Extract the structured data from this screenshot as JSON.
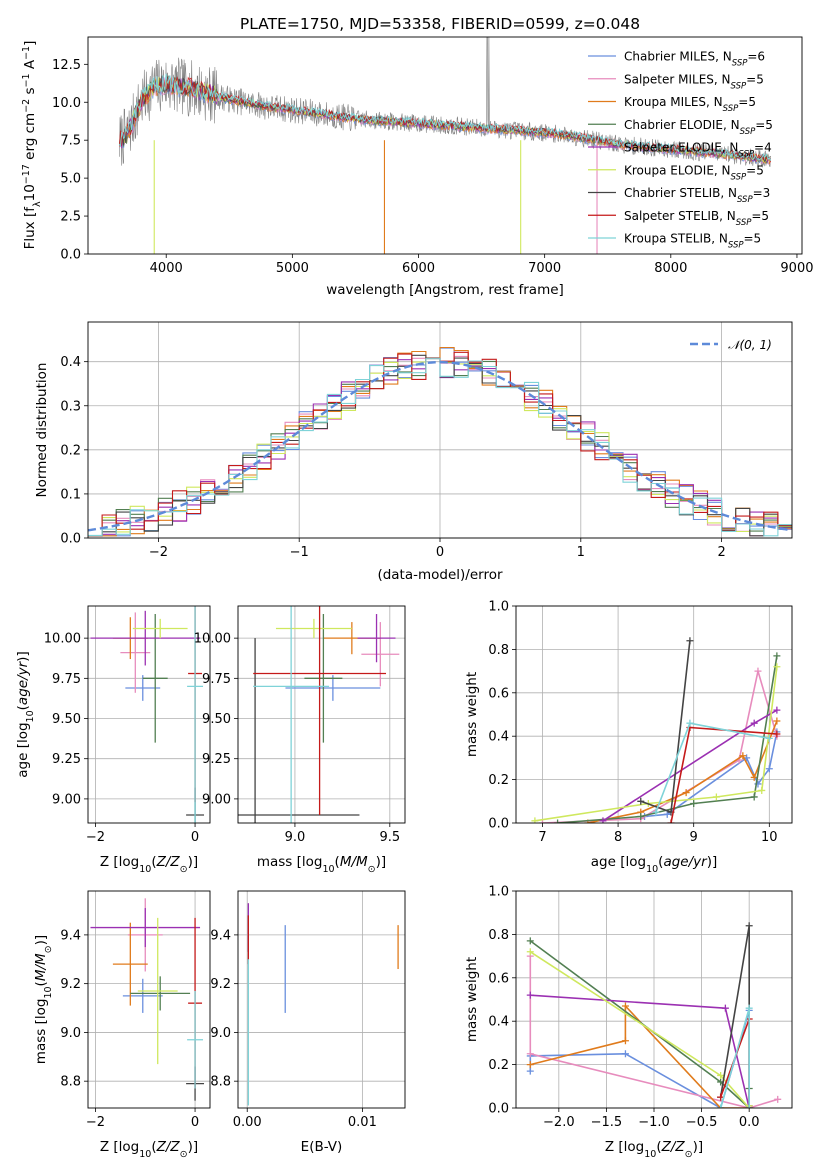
{
  "title": "PLATE=1750, MJD=53358, FIBERID=0599, z=0.048",
  "colors": {
    "Chabrier MILES": "#6a8fde",
    "Salpeter MILES": "#e78cbd",
    "Kroupa MILES": "#e07b1c",
    "Chabrier ELODIE": "#527f52",
    "Salpeter ELODIE": "#9b30b2",
    "Kroupa ELODIE": "#cfe85e",
    "Chabrier STELIB": "#444444",
    "Salpeter STELIB": "#c41a1a",
    "Kroupa STELIB": "#7fd3d8",
    "data": "#7f7f7f",
    "normal": "#5d8ad9"
  },
  "legend": [
    {
      "name": "Chabrier MILES",
      "n": "6"
    },
    {
      "name": "Salpeter MILES",
      "n": "5"
    },
    {
      "name": "Kroupa MILES",
      "n": "5"
    },
    {
      "name": "Chabrier ELODIE",
      "n": "5"
    },
    {
      "name": "Salpeter ELODIE",
      "n": "4"
    },
    {
      "name": "Kroupa ELODIE",
      "n": "5"
    },
    {
      "name": "Chabrier STELIB",
      "n": "3"
    },
    {
      "name": "Salpeter STELIB",
      "n": "5"
    },
    {
      "name": "Kroupa STELIB",
      "n": "5"
    }
  ],
  "legend_nssp_label": "N",
  "legend_nssp_sub": "SSP",
  "normal_legend": "𝒩(0, 1)",
  "chart_data": [
    {
      "id": "spectrum",
      "type": "line",
      "title": "PLATE=1750, MJD=53358, FIBERID=0599, z=0.048",
      "xlabel": "wavelength [Angstrom, rest frame]",
      "ylabel": "Flux [f_λ 10^-17 erg cm^-2 s^-1 A^-1]",
      "xlim": [
        3380,
        9040
      ],
      "ylim": [
        0,
        14.3
      ],
      "xticks": [
        4000,
        5000,
        6000,
        7000,
        8000,
        9000
      ],
      "yticks": [
        0.0,
        2.5,
        5.0,
        7.5,
        10.0,
        12.5
      ],
      "data_range": [
        3630,
        8790
      ],
      "continuum_x": [
        3630,
        3700,
        3800,
        3900,
        4000,
        4200,
        4500,
        4800,
        5000,
        5500,
        6000,
        6500,
        7000,
        7200,
        7400,
        7600,
        8000,
        8500,
        8790
      ],
      "continuum_y": [
        7.4,
        8.0,
        10.0,
        11.0,
        11.2,
        10.9,
        10.2,
        9.7,
        9.5,
        8.9,
        8.6,
        8.3,
        8.0,
        7.8,
        7.5,
        7.2,
        6.9,
        6.5,
        6.2
      ],
      "dropouts": [
        {
          "x": 3905,
          "color": "Kroupa ELODIE"
        },
        {
          "x": 5730,
          "color": "Kroupa MILES"
        },
        {
          "x": 6810,
          "color": "Kroupa ELODIE"
        },
        {
          "x": 7415,
          "color": "Salpeter MILES"
        }
      ]
    },
    {
      "id": "residual_histogram",
      "type": "histogram",
      "xlabel": "(data-model)/error",
      "ylabel": "Normed distribution",
      "xlim": [
        -2.5,
        2.5
      ],
      "ylim": [
        0,
        0.49
      ],
      "xticks": [
        -2,
        -1,
        0,
        1,
        2
      ],
      "yticks": [
        0.0,
        0.1,
        0.2,
        0.3,
        0.4
      ],
      "bin_width": 0.1,
      "reference": "N(0,1)"
    },
    {
      "id": "age_vs_Z",
      "type": "errorbar",
      "xlabel": "Z [log10(Z/Z⊙)]",
      "ylabel": "age  [log10(age/yr)]",
      "xlim": [
        -2.15,
        0.3
      ],
      "ylim": [
        8.85,
        10.2
      ],
      "xticks": [
        -2,
        0
      ],
      "yticks": [
        9.0,
        9.25,
        9.5,
        9.75,
        10.0
      ],
      "points": [
        {
          "s": "Chabrier MILES",
          "x": -1.05,
          "xe": 0.35,
          "y": 9.69,
          "ye": 0.08
        },
        {
          "s": "Salpeter MILES",
          "x": -1.2,
          "xe": 0.3,
          "y": 9.91,
          "ye": 0.25
        },
        {
          "s": "Kroupa MILES",
          "x": -1.3,
          "xe": 0.35,
          "y": 10.0,
          "ye": 0.13
        },
        {
          "s": "Chabrier ELODIE",
          "x": -0.8,
          "xe": 0.25,
          "y": 9.75,
          "ye": 0.4
        },
        {
          "s": "Salpeter ELODIE",
          "x": -1.0,
          "xe": 1.1,
          "y": 10.0,
          "ye": 0.17
        },
        {
          "s": "Kroupa ELODIE",
          "x": -0.7,
          "xe": 0.55,
          "y": 10.06,
          "ye": 0.06
        },
        {
          "s": "Chabrier STELIB",
          "x": 0.0,
          "xe": 0.18,
          "y": 8.9,
          "ye": 0.17
        },
        {
          "s": "Salpeter STELIB",
          "x": 0.0,
          "xe": 0.14,
          "y": 9.78,
          "ye": 0.8
        },
        {
          "s": "Kroupa STELIB",
          "x": 0.0,
          "xe": 0.16,
          "y": 9.7,
          "ye": 0.85
        }
      ]
    },
    {
      "id": "age_vs_mass",
      "type": "errorbar",
      "xlabel": "mass [log10(M/M⊙)]",
      "ylabel": "",
      "xlim": [
        8.7,
        9.58
      ],
      "ylim": [
        8.85,
        10.2
      ],
      "xticks": [
        9.0,
        9.5
      ],
      "yticks": [
        9.0,
        9.25,
        9.5,
        9.75,
        10.0
      ],
      "points": [
        {
          "s": "Chabrier MILES",
          "x": 9.2,
          "xe": 0.25,
          "y": 9.69,
          "ye": 0.08
        },
        {
          "s": "Salpeter MILES",
          "x": 9.45,
          "xe": 0.1,
          "y": 9.9,
          "ye": 0.2
        },
        {
          "s": "Kroupa MILES",
          "x": 9.3,
          "xe": 0.15,
          "y": 10.0,
          "ye": 0.1
        },
        {
          "s": "Chabrier ELODIE",
          "x": 9.15,
          "xe": 0.1,
          "y": 9.75,
          "ye": 0.4
        },
        {
          "s": "Salpeter ELODIE",
          "x": 9.43,
          "xe": 0.1,
          "y": 10.0,
          "ye": 0.15
        },
        {
          "s": "Kroupa ELODIE",
          "x": 9.1,
          "xe": 0.2,
          "y": 10.06,
          "ye": 0.06
        },
        {
          "s": "Chabrier STELIB",
          "x": 8.79,
          "xe": 0.55,
          "y": 8.9,
          "ye": 1.1
        },
        {
          "s": "Salpeter STELIB",
          "x": 9.13,
          "xe": 0.35,
          "y": 9.78,
          "ye": 0.88
        },
        {
          "s": "Kroupa STELIB",
          "x": 8.98,
          "xe": 0.2,
          "y": 9.7,
          "ye": 0.9
        }
      ]
    },
    {
      "id": "weight_vs_age",
      "type": "line",
      "xlabel": "age  [log10(age/yr)]",
      "ylabel": "mass weight",
      "xlim": [
        6.65,
        10.3
      ],
      "ylim": [
        0,
        1.0
      ],
      "xticks": [
        7,
        8,
        9,
        10
      ],
      "yticks": [
        0.0,
        0.2,
        0.4,
        0.6,
        0.8,
        1.0
      ],
      "series": [
        {
          "name": "Chabrier MILES",
          "x": [
            8.35,
            8.65,
            9.7,
            9.85,
            10.0,
            10.1
          ],
          "y": [
            0.03,
            0.04,
            0.3,
            0.18,
            0.25,
            0.42
          ]
        },
        {
          "name": "Salpeter MILES",
          "x": [
            7.0,
            8.3,
            9.6,
            9.85,
            10.1
          ],
          "y": [
            0.0,
            0.02,
            0.29,
            0.7,
            0.4
          ]
        },
        {
          "name": "Kroupa MILES",
          "x": [
            7.6,
            8.3,
            8.9,
            9.65,
            9.8,
            10.1
          ],
          "y": [
            0.0,
            0.05,
            0.14,
            0.31,
            0.21,
            0.47
          ]
        },
        {
          "name": "Chabrier ELODIE",
          "x": [
            7.2,
            8.3,
            9.0,
            9.8,
            10.1
          ],
          "y": [
            0.0,
            0.03,
            0.09,
            0.12,
            0.77
          ]
        },
        {
          "name": "Salpeter ELODIE",
          "x": [
            7.8,
            9.8,
            10.1
          ],
          "y": [
            0.01,
            0.46,
            0.52
          ]
        },
        {
          "name": "Kroupa ELODIE",
          "x": [
            6.9,
            8.4,
            9.3,
            9.9,
            10.1
          ],
          "y": [
            0.01,
            0.09,
            0.12,
            0.15,
            0.72
          ]
        },
        {
          "name": "Chabrier STELIB",
          "x": [
            8.3,
            8.7,
            8.95
          ],
          "y": [
            0.1,
            0.05,
            0.84
          ]
        },
        {
          "name": "Salpeter STELIB",
          "x": [
            8.7,
            8.95,
            10.1
          ],
          "y": [
            0.0,
            0.44,
            0.41
          ]
        },
        {
          "name": "Kroupa STELIB",
          "x": [
            8.5,
            8.95,
            10.0
          ],
          "y": [
            0.05,
            0.46,
            0.39
          ]
        }
      ]
    },
    {
      "id": "mass_vs_Z",
      "type": "errorbar",
      "xlabel": "Z [log10(Z/Z⊙)]",
      "ylabel": "mass [log10(M/M⊙)]",
      "xlim": [
        -2.15,
        0.3
      ],
      "ylim": [
        8.69,
        9.58
      ],
      "xticks": [
        -2,
        0
      ],
      "yticks": [
        8.8,
        9.0,
        9.2,
        9.4
      ],
      "points": [
        {
          "s": "Chabrier MILES",
          "x": -1.05,
          "xe": 0.4,
          "y": 9.15,
          "ye": 0.07
        },
        {
          "s": "Salpeter MILES",
          "x": -1.0,
          "xe": 0.35,
          "y": 9.4,
          "ye": 0.15
        },
        {
          "s": "Kroupa MILES",
          "x": -1.3,
          "xe": 0.35,
          "y": 9.28,
          "ye": 0.17
        },
        {
          "s": "Chabrier ELODIE",
          "x": -0.7,
          "xe": 0.6,
          "y": 9.16,
          "ye": 0.07
        },
        {
          "s": "Salpeter ELODIE",
          "x": -1.0,
          "xe": 1.1,
          "y": 9.43,
          "ye": 0.08
        },
        {
          "s": "Kroupa ELODIE",
          "x": -0.75,
          "xe": 0.4,
          "y": 9.17,
          "ye": 0.3
        },
        {
          "s": "Chabrier STELIB",
          "x": 0.0,
          "xe": 0.18,
          "y": 8.79,
          "ye": 0.07
        },
        {
          "s": "Salpeter STELIB",
          "x": 0.0,
          "xe": 0.14,
          "y": 9.12,
          "ye": 0.35
        },
        {
          "s": "Kroupa STELIB",
          "x": 0.0,
          "xe": 0.16,
          "y": 8.97,
          "ye": 0.2
        }
      ]
    },
    {
      "id": "mass_vs_ebv",
      "type": "errorbar",
      "xlabel": "E(B-V)",
      "ylabel": "",
      "xlim": [
        -0.0008,
        0.0137
      ],
      "ylim": [
        8.69,
        9.58
      ],
      "xticks": [
        0.0,
        0.01
      ],
      "yticks": [
        8.8,
        9.0,
        9.2,
        9.4
      ],
      "points": [
        {
          "s": "Chabrier MILES",
          "x": 0.0033,
          "xe": 0.0,
          "y": 9.26,
          "ye": 0.18
        },
        {
          "s": "Kroupa MILES",
          "x": 0.0131,
          "xe": 0.0,
          "y": 9.35,
          "ye": 0.09
        },
        {
          "s": "Salpeter ELODIE",
          "x": 0.0001,
          "xe": 0.0,
          "y": 9.43,
          "ye": 0.1
        },
        {
          "s": "Salpeter STELIB",
          "x": 0.0001,
          "xe": 0.0,
          "y": 9.38,
          "ye": 0.1
        },
        {
          "s": "Kroupa STELIB",
          "x": 0.0001,
          "xe": 0.0,
          "y": 9.0,
          "ye": 0.3
        }
      ]
    },
    {
      "id": "weight_vs_Z",
      "type": "line",
      "xlabel": "Z [log10(Z/Z⊙)]",
      "ylabel": "mass weight",
      "xlim": [
        -2.45,
        0.45
      ],
      "ylim": [
        0,
        1.0
      ],
      "xticks": [
        -2.0,
        -1.5,
        -1.0,
        -0.5,
        0.0
      ],
      "yticks": [
        0.0,
        0.2,
        0.4,
        0.6,
        0.8,
        1.0
      ],
      "series": [
        {
          "name": "Chabrier MILES",
          "x": [
            -2.3,
            -2.3,
            -1.3,
            -0.3,
            0.0,
            0.0
          ],
          "y": [
            0.17,
            0.24,
            0.25,
            0.0,
            0.45,
            0.0
          ]
        },
        {
          "name": "Salpeter MILES",
          "x": [
            -2.3,
            -2.3,
            0.0,
            0.3
          ],
          "y": [
            0.7,
            0.25,
            0.0,
            0.04
          ]
        },
        {
          "name": "Kroupa MILES",
          "x": [
            -2.3,
            -1.3,
            -1.3,
            -0.3,
            0.0
          ],
          "y": [
            0.2,
            0.31,
            0.47,
            0.0,
            0.0
          ]
        },
        {
          "name": "Chabrier ELODIE",
          "x": [
            -2.3,
            -0.3,
            0.0,
            0.0
          ],
          "y": [
            0.77,
            0.12,
            0.0,
            0.09
          ]
        },
        {
          "name": "Salpeter ELODIE",
          "x": [
            -2.3,
            -0.25,
            0.0,
            0.0
          ],
          "y": [
            0.52,
            0.46,
            0.0,
            0.01
          ]
        },
        {
          "name": "Kroupa ELODIE",
          "x": [
            -2.3,
            -0.3,
            0.0,
            0.0
          ],
          "y": [
            0.72,
            0.15,
            0.0,
            0.01
          ]
        },
        {
          "name": "Chabrier STELIB",
          "x": [
            -0.3,
            0.0,
            0.0
          ],
          "y": [
            0.05,
            0.84,
            0.0
          ]
        },
        {
          "name": "Salpeter STELIB",
          "x": [
            -0.3,
            0.0,
            0.0
          ],
          "y": [
            0.05,
            0.41,
            0.0
          ]
        },
        {
          "name": "Kroupa STELIB",
          "x": [
            -0.3,
            0.0,
            0.0
          ],
          "y": [
            0.0,
            0.46,
            0.0
          ]
        }
      ]
    }
  ]
}
